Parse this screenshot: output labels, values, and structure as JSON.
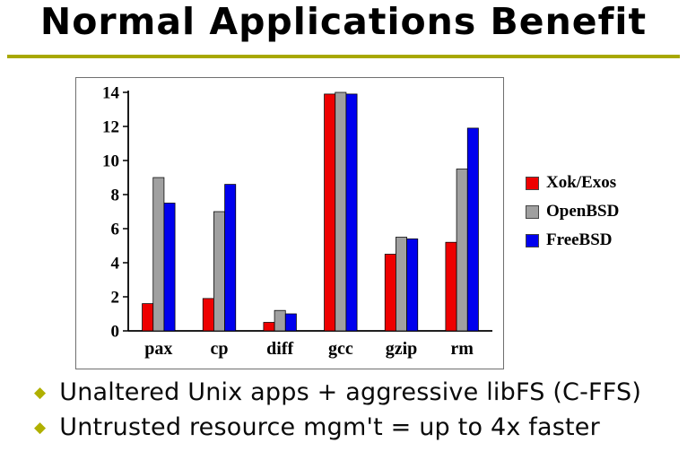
{
  "slide": {
    "title": "Normal Applications Benefit",
    "accent_color": "#a8a800",
    "bullet_color": "#b0b000",
    "bullets": [
      {
        "text": "Unaltered Unix apps + aggressive libFS (C-FFS)"
      },
      {
        "text": "Untrusted resource mgm't = up to 4x faster"
      }
    ]
  },
  "chart_data": {
    "type": "bar",
    "categories": [
      "pax",
      "cp",
      "diff",
      "gcc",
      "gzip",
      "rm"
    ],
    "series": [
      {
        "name": "Xok/Exos",
        "color": "#ee0000",
        "values": [
          1.6,
          1.9,
          0.5,
          13.9,
          4.5,
          5.2
        ]
      },
      {
        "name": "OpenBSD",
        "color": "#a0a0a0",
        "values": [
          9.0,
          7.0,
          1.2,
          14.0,
          5.5,
          9.5
        ]
      },
      {
        "name": "FreeBSD",
        "color": "#0000ee",
        "values": [
          7.5,
          8.6,
          1.0,
          13.9,
          5.4,
          11.9
        ]
      }
    ],
    "title": "",
    "xlabel": "",
    "ylabel": "",
    "ylim": [
      0,
      14
    ],
    "yticks": [
      0,
      2,
      4,
      6,
      8,
      10,
      12,
      14
    ],
    "legend_position": "right",
    "grid": false
  }
}
